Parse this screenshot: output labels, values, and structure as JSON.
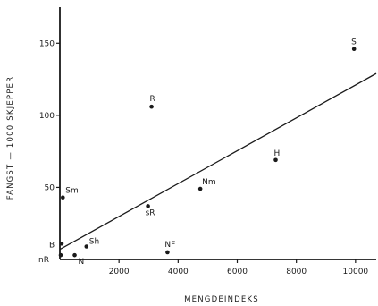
{
  "chart_data": {
    "type": "scatter",
    "title": "",
    "xlabel": "MENGDEINDEKS",
    "ylabel": "FANGST — 1000 SKJEPPER",
    "xlim": [
      0,
      10700
    ],
    "ylim": [
      0,
      175
    ],
    "x_ticks": [
      2000,
      4000,
      6000,
      8000,
      10000
    ],
    "x_tick_labels": [
      "2000",
      "4000",
      "6000",
      "8000",
      "10000"
    ],
    "y_ticks": [
      50,
      100,
      150
    ],
    "y_tick_labels": [
      "50",
      "100",
      "150"
    ],
    "grid": false,
    "legend": "none",
    "points": [
      {
        "label": "S",
        "x": 9950,
        "y": 146
      },
      {
        "label": "R",
        "x": 3100,
        "y": 106
      },
      {
        "label": "H",
        "x": 7300,
        "y": 69
      },
      {
        "label": "Nm",
        "x": 4750,
        "y": 49
      },
      {
        "label": "Sm",
        "x": 100,
        "y": 43
      },
      {
        "label": "sR",
        "x": 2980,
        "y": 37
      },
      {
        "label": "Sh",
        "x": 900,
        "y": 9
      },
      {
        "label": "NF",
        "x": 3640,
        "y": 5
      },
      {
        "label": "B",
        "x": 60,
        "y": 11
      },
      {
        "label": "N",
        "x": 500,
        "y": 3
      },
      {
        "label": "nR",
        "x": 30,
        "y": 3
      }
    ],
    "regression_line": {
      "x": [
        0,
        10700
      ],
      "y": [
        7,
        129
      ]
    }
  }
}
